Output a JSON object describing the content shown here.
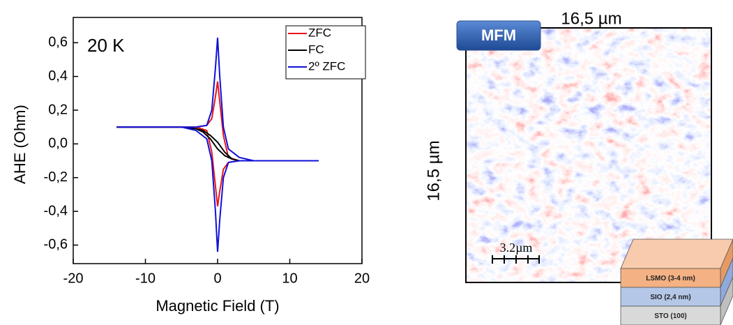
{
  "chart_data": {
    "type": "line",
    "annotation": "20 K",
    "x_label": "Magnetic Field (T)",
    "y_label": "AHE (Ohm)",
    "xlim": [
      -20,
      20
    ],
    "xticks": [
      -20,
      -10,
      0,
      10,
      20
    ],
    "ylim": [
      -0.71,
      0.75
    ],
    "yticks": [
      {
        "value": -0.6,
        "label": "-0,6"
      },
      {
        "value": -0.4,
        "label": "-0,4"
      },
      {
        "value": -0.2,
        "label": "-0,2"
      },
      {
        "value": 0,
        "label": "0,0"
      },
      {
        "value": 0.2,
        "label": "0,2"
      },
      {
        "value": 0.4,
        "label": "0,4"
      },
      {
        "value": 0.6,
        "label": "0,6"
      }
    ],
    "legend": "top-right",
    "series": [
      {
        "name": "ZFC",
        "color": "#e8141b",
        "x": [
          -14,
          -6,
          -3,
          -1.5,
          -0.8,
          -0.3,
          0,
          0.3,
          0.8,
          1.5,
          3,
          6,
          14,
          6,
          3,
          1.5,
          0.8,
          0.3,
          0,
          -0.3,
          -0.8,
          -1.5,
          -3,
          -6,
          -14
        ],
        "values": [
          0.1,
          0.1,
          0.1,
          0.11,
          0.15,
          0.28,
          0.37,
          0.25,
          0.05,
          -0.08,
          -0.1,
          -0.1,
          -0.1,
          -0.1,
          -0.1,
          -0.11,
          -0.15,
          -0.28,
          -0.37,
          -0.25,
          -0.05,
          0.08,
          0.1,
          0.1,
          0.1
        ]
      },
      {
        "name": "FC",
        "color": "#000000",
        "x": [
          -14,
          -5,
          -3,
          -2,
          -1,
          0,
          1,
          2,
          3,
          5,
          14,
          5,
          3,
          2,
          1,
          0,
          -1,
          -2,
          -3,
          -5,
          -14
        ],
        "values": [
          0.1,
          0.1,
          0.09,
          0.07,
          0.03,
          -0.03,
          -0.07,
          -0.09,
          -0.1,
          -0.1,
          -0.1,
          -0.1,
          -0.1,
          -0.09,
          -0.05,
          0.01,
          0.05,
          0.08,
          0.09,
          0.1,
          0.1
        ]
      },
      {
        "name": "2º ZFC",
        "color": "#1010d8",
        "x": [
          -14,
          -5,
          -3,
          -1.5,
          -0.8,
          -0.3,
          0,
          0.3,
          0.8,
          1.5,
          3,
          5,
          14,
          5,
          3,
          1.5,
          0.8,
          0.3,
          0,
          -0.3,
          -0.8,
          -1.5,
          -3,
          -5,
          -14
        ],
        "values": [
          0.1,
          0.1,
          0.1,
          0.11,
          0.2,
          0.45,
          0.63,
          0.4,
          0.1,
          -0.03,
          -0.08,
          -0.1,
          -0.1,
          -0.1,
          -0.1,
          -0.11,
          -0.2,
          -0.45,
          -0.64,
          -0.4,
          -0.1,
          0.03,
          0.08,
          0.1,
          0.1
        ]
      }
    ]
  },
  "mfm": {
    "label": "MFM",
    "width_label": "16,5 µm",
    "height_label": "16,5 µm",
    "scale_bar": "3.2µm",
    "layers": [
      "LSMO (3-4 nm)",
      "SIO (2,4 nm)",
      "STO (100)"
    ]
  }
}
